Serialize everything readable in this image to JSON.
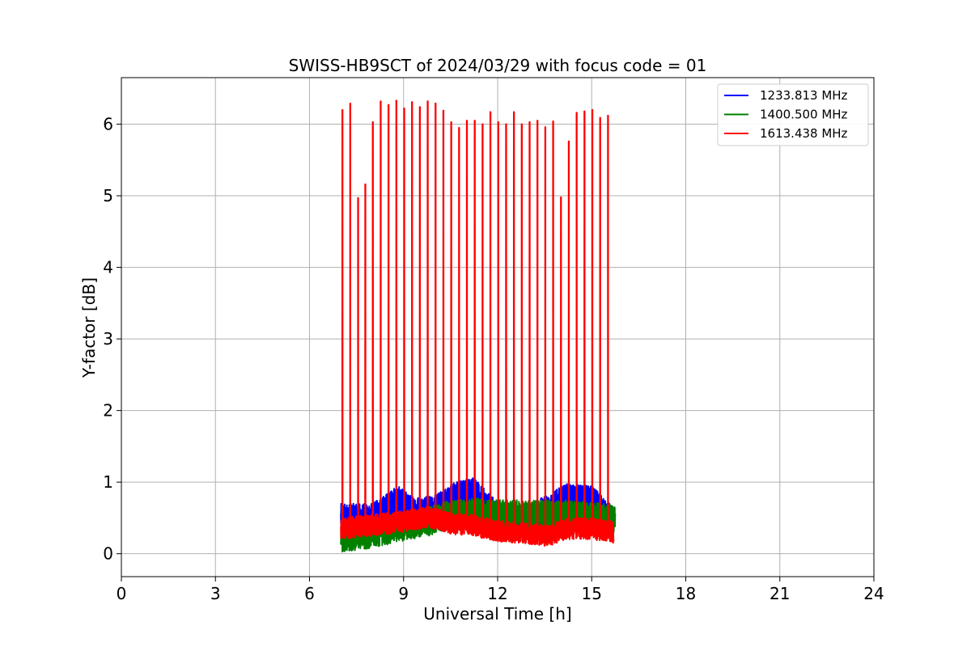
{
  "chart_data": {
    "type": "line",
    "title": "SWISS-HB9SCT of 2024/03/29 with focus code = 01",
    "xlabel": "Universal Time [h]",
    "ylabel": "Y-factor [dB]",
    "xlim": [
      0,
      24
    ],
    "ylim": [
      -0.32,
      6.65
    ],
    "xticks": [
      0,
      3,
      6,
      9,
      12,
      15,
      18,
      21,
      24
    ],
    "yticks": [
      0,
      1,
      2,
      3,
      4,
      5,
      6
    ],
    "grid": true,
    "legend_position": "top-right",
    "series": [
      {
        "name": "1233.813 MHz",
        "color": "#0000ff",
        "x_range": [
          7.0,
          15.7
        ],
        "baseline": [
          [
            7.0,
            0.5
          ],
          [
            8.0,
            0.5
          ],
          [
            8.8,
            0.75
          ],
          [
            9.3,
            0.6
          ],
          [
            10.0,
            0.62
          ],
          [
            10.6,
            0.8
          ],
          [
            11.2,
            0.88
          ],
          [
            11.8,
            0.6
          ],
          [
            12.3,
            0.45
          ],
          [
            13.0,
            0.5
          ],
          [
            13.5,
            0.6
          ],
          [
            14.2,
            0.78
          ],
          [
            15.0,
            0.75
          ],
          [
            15.7,
            0.45
          ]
        ],
        "noise_amplitude": 0.2,
        "peak_max": 1.16,
        "min_value": 0.0
      },
      {
        "name": "1400.500 MHz",
        "color": "#008000",
        "x_range": [
          7.0,
          15.75
        ],
        "baseline": [
          [
            7.0,
            0.22
          ],
          [
            8.0,
            0.28
          ],
          [
            9.0,
            0.38
          ],
          [
            9.8,
            0.45
          ],
          [
            10.5,
            0.55
          ],
          [
            11.2,
            0.58
          ],
          [
            12.0,
            0.55
          ],
          [
            13.0,
            0.55
          ],
          [
            14.0,
            0.55
          ],
          [
            15.0,
            0.52
          ],
          [
            15.75,
            0.48
          ]
        ],
        "noise_amplitude": 0.2,
        "peak_max": 0.85,
        "min_value": 0.0
      },
      {
        "name": "1613.438 MHz",
        "color": "#ff0000",
        "x_range": [
          7.0,
          15.7
        ],
        "baseline": [
          [
            7.0,
            0.35
          ],
          [
            8.0,
            0.4
          ],
          [
            9.0,
            0.45
          ],
          [
            9.8,
            0.52
          ],
          [
            10.5,
            0.42
          ],
          [
            11.2,
            0.4
          ],
          [
            12.0,
            0.32
          ],
          [
            13.0,
            0.28
          ],
          [
            13.6,
            0.25
          ],
          [
            14.2,
            0.35
          ],
          [
            15.0,
            0.35
          ],
          [
            15.7,
            0.3
          ]
        ],
        "noise_amplitude": 0.15,
        "min_value": 0.0,
        "spikes": [
          {
            "x": 7.05,
            "y": 6.2
          },
          {
            "x": 7.3,
            "y": 6.29
          },
          {
            "x": 7.55,
            "y": 4.97
          },
          {
            "x": 7.78,
            "y": 5.16
          },
          {
            "x": 8.02,
            "y": 6.03
          },
          {
            "x": 8.27,
            "y": 6.32
          },
          {
            "x": 8.52,
            "y": 6.27
          },
          {
            "x": 8.77,
            "y": 6.33
          },
          {
            "x": 9.02,
            "y": 6.22
          },
          {
            "x": 9.27,
            "y": 6.31
          },
          {
            "x": 9.52,
            "y": 6.24
          },
          {
            "x": 9.77,
            "y": 6.32
          },
          {
            "x": 10.02,
            "y": 6.29
          },
          {
            "x": 10.27,
            "y": 6.19
          },
          {
            "x": 10.52,
            "y": 6.03
          },
          {
            "x": 10.77,
            "y": 5.95
          },
          {
            "x": 11.02,
            "y": 6.05
          },
          {
            "x": 11.27,
            "y": 6.05
          },
          {
            "x": 11.52,
            "y": 6.0
          },
          {
            "x": 11.77,
            "y": 6.17
          },
          {
            "x": 12.02,
            "y": 6.03
          },
          {
            "x": 12.27,
            "y": 6.0
          },
          {
            "x": 12.52,
            "y": 6.17
          },
          {
            "x": 12.77,
            "y": 6.0
          },
          {
            "x": 13.02,
            "y": 6.03
          },
          {
            "x": 13.27,
            "y": 6.05
          },
          {
            "x": 13.52,
            "y": 5.96
          },
          {
            "x": 13.77,
            "y": 6.04
          },
          {
            "x": 14.02,
            "y": 4.98
          },
          {
            "x": 14.27,
            "y": 5.76
          },
          {
            "x": 14.52,
            "y": 6.16
          },
          {
            "x": 14.77,
            "y": 6.18
          },
          {
            "x": 15.02,
            "y": 6.2
          },
          {
            "x": 15.27,
            "y": 6.09
          },
          {
            "x": 15.52,
            "y": 6.12
          }
        ]
      }
    ]
  },
  "colors": {
    "grid": "#b0b0b0",
    "axes": "#000000",
    "legend_border": "#cccccc",
    "background": "#ffffff"
  }
}
